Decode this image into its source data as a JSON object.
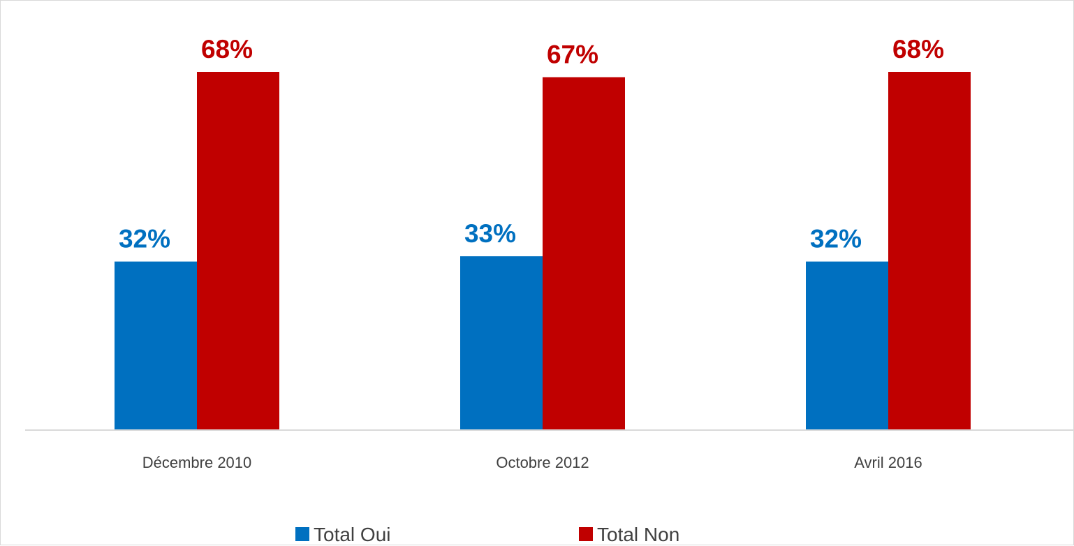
{
  "chart_data": {
    "type": "bar",
    "categories": [
      "Décembre 2010",
      "Octobre 2012",
      "Avril 2016"
    ],
    "series": [
      {
        "name": "Total Oui",
        "color": "#0070c0",
        "values": [
          32,
          33,
          32
        ],
        "labels": [
          "32%",
          "33%",
          "32%"
        ]
      },
      {
        "name": "Total Non",
        "color": "#c00000",
        "values": [
          68,
          67,
          68
        ],
        "labels": [
          "68%",
          "67%",
          "68%"
        ]
      }
    ],
    "title": "",
    "xlabel": "",
    "ylabel": "",
    "ylim": [
      0,
      75
    ],
    "grid": false,
    "legend_position": "bottom",
    "axis_color": "#d9d9d9"
  }
}
